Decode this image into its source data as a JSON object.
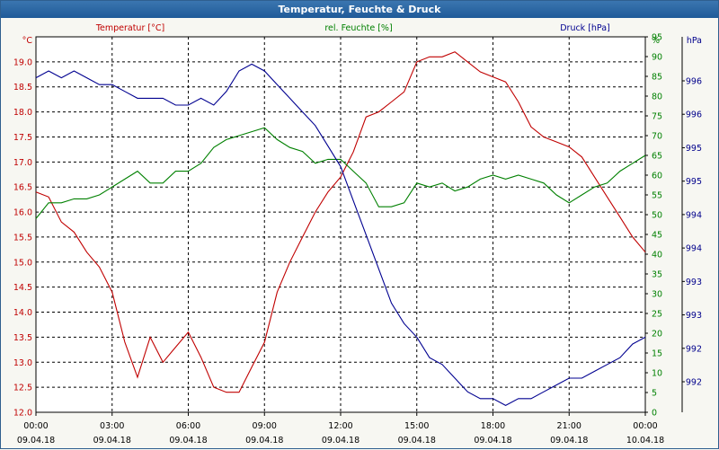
{
  "window": {
    "title": "Temperatur, Feuchte & Druck"
  },
  "chart_data": {
    "type": "line",
    "title": "Temperatur, Feuchte & Druck",
    "x_ticks": [
      {
        "time": "00:00",
        "date": "09.04.18"
      },
      {
        "time": "03:00",
        "date": "09.04.18"
      },
      {
        "time": "06:00",
        "date": "09.04.18"
      },
      {
        "time": "09:00",
        "date": "09.04.18"
      },
      {
        "time": "12:00",
        "date": "09.04.18"
      },
      {
        "time": "15:00",
        "date": "09.04.18"
      },
      {
        "time": "18:00",
        "date": "09.04.18"
      },
      {
        "time": "21:00",
        "date": "09.04.18"
      },
      {
        "time": "00:00",
        "date": "10.04.18"
      }
    ],
    "x_range_hours": [
      0,
      24
    ],
    "grid": true,
    "axes": {
      "temperature": {
        "unit_label": "°C",
        "range": [
          12.0,
          19.5
        ],
        "ticks": [
          "12.0",
          "12.5",
          "13.0",
          "13.5",
          "14.0",
          "14.5",
          "15.0",
          "15.5",
          "16.0",
          "16.5",
          "17.0",
          "17.5",
          "18.0",
          "18.5",
          "19.0"
        ]
      },
      "humidity": {
        "unit_label": "%",
        "range": [
          0,
          95
        ],
        "ticks": [
          "0",
          "5",
          "10",
          "15",
          "20",
          "25",
          "30",
          "35",
          "40",
          "45",
          "50",
          "55",
          "60",
          "65",
          "70",
          "75",
          "80",
          "85",
          "90",
          "95"
        ]
      },
      "pressure": {
        "unit_label": "hPa",
        "range": [
          991.5,
          997.0
        ],
        "ticks": [
          "992",
          "992",
          "993",
          "993",
          "994",
          "994",
          "995",
          "995",
          "996",
          "996"
        ]
      }
    },
    "series": [
      {
        "name": "Temperatur [°C]",
        "axis": "temperature",
        "color": "#c00000",
        "x": [
          0,
          0.5,
          1,
          1.5,
          2,
          2.5,
          3,
          3.5,
          4,
          4.5,
          5,
          5.5,
          6,
          6.5,
          7,
          7.5,
          8,
          8.5,
          9,
          9.5,
          10,
          10.5,
          11,
          11.5,
          12,
          12.5,
          13,
          13.5,
          14,
          14.5,
          15,
          15.5,
          16,
          16.5,
          17,
          17.5,
          18,
          18.5,
          19,
          19.5,
          20,
          20.5,
          21,
          21.5,
          22,
          22.5,
          23,
          23.5,
          24
        ],
        "values": [
          16.4,
          16.3,
          15.8,
          15.6,
          15.2,
          14.9,
          14.4,
          13.4,
          12.7,
          13.5,
          13.0,
          13.3,
          13.6,
          13.1,
          12.5,
          12.4,
          12.4,
          12.9,
          13.4,
          14.4,
          15.0,
          15.5,
          16.0,
          16.4,
          16.7,
          17.2,
          17.9,
          18.0,
          18.2,
          18.4,
          19.0,
          19.1,
          19.1,
          19.2,
          19.0,
          18.8,
          18.7,
          18.6,
          18.2,
          17.7,
          17.5,
          17.4,
          17.3,
          17.1,
          16.7,
          16.3,
          15.9,
          15.5,
          15.2
        ]
      },
      {
        "name": "rel. Feuchte [%]",
        "axis": "humidity",
        "color": "#008000",
        "x": [
          0,
          0.5,
          1,
          1.5,
          2,
          2.5,
          3,
          3.5,
          4,
          4.5,
          5,
          5.5,
          6,
          6.5,
          7,
          7.5,
          8,
          8.5,
          9,
          9.5,
          10,
          10.5,
          11,
          11.5,
          12,
          12.5,
          13,
          13.5,
          14,
          14.5,
          15,
          15.5,
          16,
          16.5,
          17,
          17.5,
          18,
          18.5,
          19,
          19.5,
          20,
          20.5,
          21,
          21.5,
          22,
          22.5,
          23,
          23.5,
          24
        ],
        "values": [
          49,
          53,
          53,
          54,
          54,
          55,
          57,
          59,
          61,
          58,
          58,
          61,
          61,
          63,
          67,
          69,
          70,
          71,
          72,
          69,
          67,
          66,
          63,
          64,
          64,
          61,
          58,
          52,
          52,
          53,
          58,
          57,
          58,
          56,
          57,
          59,
          60,
          59,
          60,
          59,
          58,
          55,
          53,
          55,
          57,
          58,
          61,
          63,
          65
        ]
      },
      {
        "name": "Druck [hPa]",
        "axis": "pressure",
        "color": "#000090",
        "x": [
          0,
          0.5,
          1,
          1.5,
          2,
          2.5,
          3,
          3.5,
          4,
          4.5,
          5,
          5.5,
          6,
          6.5,
          7,
          7.5,
          8,
          8.5,
          9,
          9.5,
          10,
          10.5,
          11,
          11.5,
          12,
          12.5,
          13,
          13.5,
          14,
          14.5,
          15,
          15.5,
          16,
          16.5,
          17,
          17.5,
          18,
          18.5,
          19,
          19.5,
          20,
          20.5,
          21,
          21.5,
          22,
          22.5,
          23,
          23.5,
          24
        ],
        "values": [
          996.4,
          996.5,
          996.4,
          996.5,
          996.4,
          996.3,
          996.3,
          996.2,
          996.1,
          996.1,
          996.1,
          996.0,
          996.0,
          996.1,
          996.0,
          996.2,
          996.5,
          996.6,
          996.5,
          996.3,
          996.1,
          995.9,
          995.7,
          995.4,
          995.1,
          994.6,
          994.1,
          993.6,
          993.1,
          992.8,
          992.6,
          992.3,
          992.2,
          992.0,
          991.8,
          991.7,
          991.7,
          991.6,
          991.7,
          991.7,
          991.8,
          991.9,
          992.0,
          992.0,
          992.1,
          992.2,
          992.3,
          992.5,
          992.6
        ]
      }
    ]
  }
}
